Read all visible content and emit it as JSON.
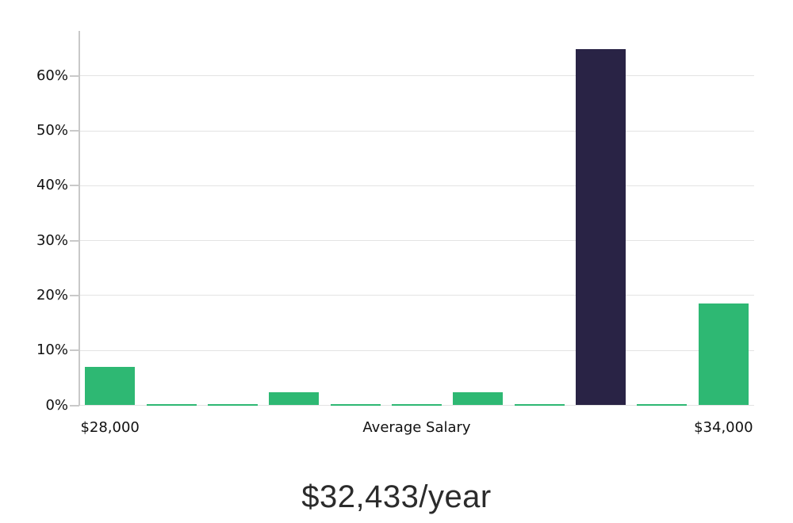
{
  "colors": {
    "bar_green": "#2eb873",
    "bar_navy": "#292345",
    "gridline": "#e3e3e3",
    "axis": "#c9c9c9",
    "tick_text": "#111111",
    "title_text": "#2b2b2b"
  },
  "chart_data": {
    "type": "bar",
    "title": "$32,433/year",
    "values": [
      7,
      0.25,
      0.2,
      2.4,
      0.2,
      0.25,
      2.4,
      0.25,
      64.8,
      0.25,
      18.5
    ],
    "bar_colors": [
      "green",
      "green",
      "green",
      "green",
      "green",
      "green",
      "green",
      "green",
      "navy",
      "green",
      "green"
    ],
    "highlighted_bar_index": 8,
    "yticks": [
      {
        "value": 0,
        "label": "0%"
      },
      {
        "value": 10,
        "label": "10%"
      },
      {
        "value": 20,
        "label": "20%"
      },
      {
        "value": 30,
        "label": "30%"
      },
      {
        "value": 40,
        "label": "40%"
      },
      {
        "value": 50,
        "label": "50%"
      },
      {
        "value": 60,
        "label": "60%"
      }
    ],
    "xticks": [
      {
        "bar_index": 0,
        "label": "$28,000"
      },
      {
        "bar_index": 5,
        "label": "Average Salary"
      },
      {
        "bar_index": 10,
        "label": "$34,000"
      }
    ],
    "ylim": [
      0,
      68
    ],
    "grid": true,
    "legend": false
  }
}
